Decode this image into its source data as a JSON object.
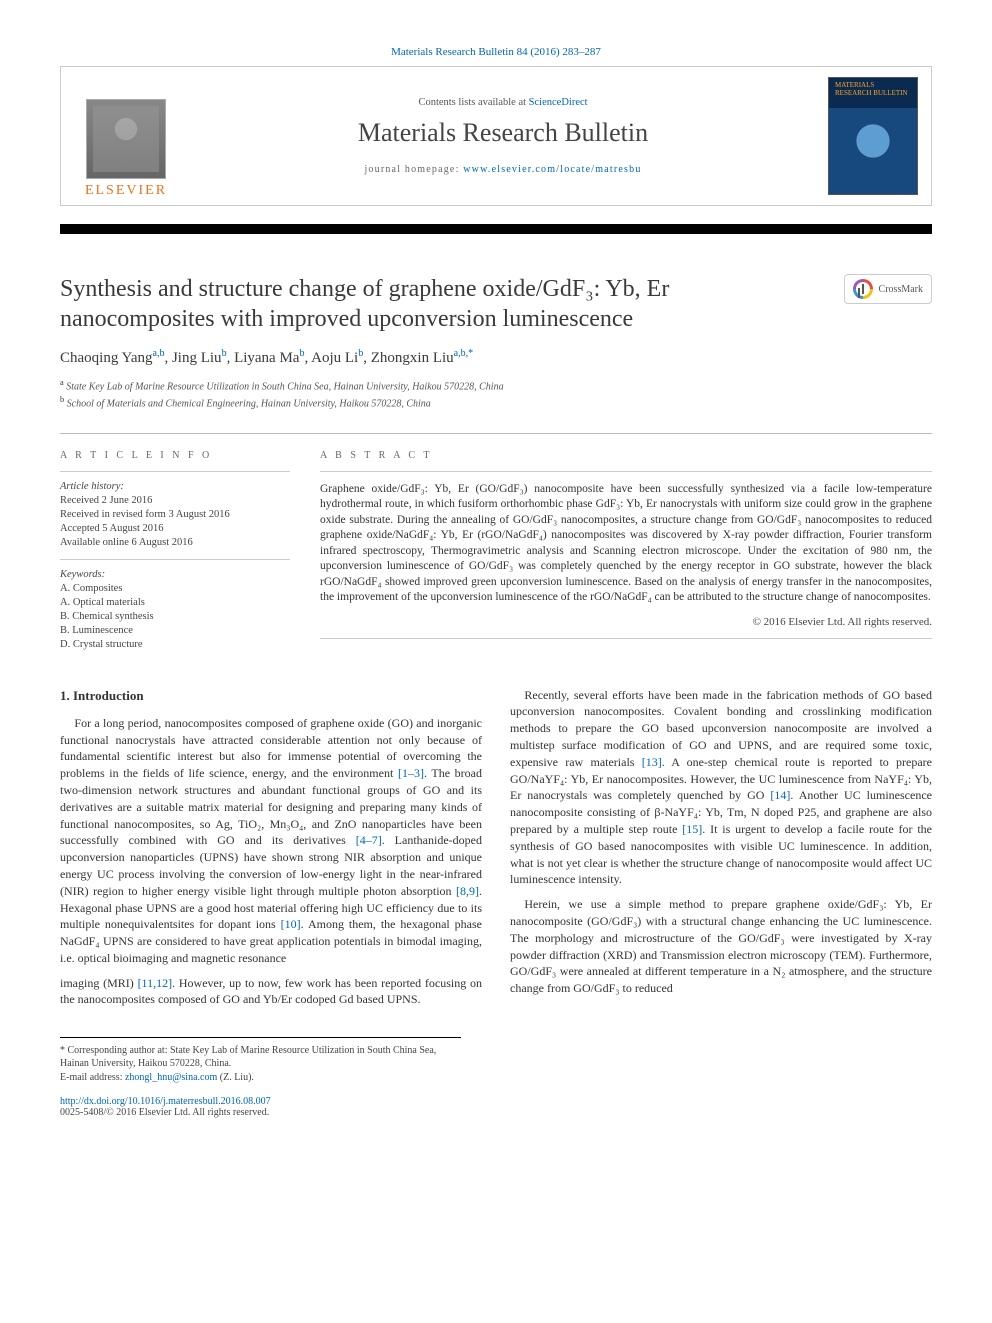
{
  "topbar": {
    "citation": "Materials Research Bulletin 84 (2016) 283–287"
  },
  "header": {
    "contents_prefix": "Contents lists available at ",
    "contents_link": "ScienceDirect",
    "journal": "Materials Research Bulletin",
    "homepage_prefix": "journal homepage: ",
    "homepage_url": "www.elsevier.com/locate/matresbu",
    "publisher": "ELSEVIER",
    "cover_label": "MATERIALS RESEARCH BULLETIN"
  },
  "crossmark": {
    "label": "CrossMark"
  },
  "article": {
    "title": "Synthesis and structure change of graphene oxide/GdF₃: Yb, Er nanocomposites with improved upconversion luminescence",
    "authors_html": "Chaoqing Yang",
    "authors": [
      {
        "name": "Chaoqing Yang",
        "aff": "a,b"
      },
      {
        "name": "Jing Liu",
        "aff": "b"
      },
      {
        "name": "Liyana Ma",
        "aff": "b"
      },
      {
        "name": "Aoju Li",
        "aff": "b"
      },
      {
        "name": "Zhongxin Liu",
        "aff": "a,b,*"
      }
    ],
    "affiliations": {
      "a": "State Key Lab of Marine Resource Utilization in South China Sea, Hainan University, Haikou 570228, China",
      "b": "School of Materials and Chemical Engineering, Hainan University, Haikou 570228, China"
    }
  },
  "info": {
    "heading": "A R T I C L E  I N F O",
    "history_label": "Article history:",
    "history": [
      "Received 2 June 2016",
      "Received in revised form 3 August 2016",
      "Accepted 5 August 2016",
      "Available online 6 August 2016"
    ],
    "keywords_label": "Keywords:",
    "keywords": [
      "A. Composites",
      "A. Optical materials",
      "B. Chemical synthesis",
      "B. Luminescence",
      "D. Crystal structure"
    ]
  },
  "abstract": {
    "heading": "A B S T R A C T",
    "text": "Graphene oxide/GdF₃: Yb, Er (GO/GdF₃) nanocomposite have been successfully synthesized via a facile low-temperature hydrothermal route, in which fusiform orthorhombic phase GdF₃: Yb, Er nanocrystals with uniform size could grow in the graphene oxide substrate. During the annealing of GO/GdF₃ nanocomposites, a structure change from GO/GdF₃ nanocomposites to reduced graphene oxide/NaGdF₄: Yb, Er (rGO/NaGdF₄) nanocomposites was discovered by X-ray powder diffraction, Fourier transform infrared spectroscopy, Thermogravimetric analysis and Scanning electron microscope. Under the excitation of 980 nm, the upconversion luminescence of GO/GdF₃ was completely quenched by the energy receptor in GO substrate, however the black rGO/NaGdF₄ showed improved green upconversion luminescence. Based on the analysis of energy transfer in the nanocomposites, the improvement of the upconversion luminescence of the rGO/NaGdF₄ can be attributed to the structure change of nanocomposites.",
    "copyright": "© 2016 Elsevier Ltd. All rights reserved."
  },
  "body": {
    "section1_heading": "1. Introduction",
    "p1": "For a long period, nanocomposites composed of graphene oxide (GO) and inorganic functional nanocrystals have attracted considerable attention not only because of fundamental scientific interest but also for immense potential of overcoming the problems in the fields of life science, energy, and the environment [1–3]. The broad two-dimension network structures and abundant functional groups of GO and its derivatives are a suitable matrix material for designing and preparing many kinds of functional nanocomposites, so Ag, TiO₂, Mn₃O₄, and ZnO nanoparticles have been successfully combined with GO and its derivatives [4–7]. Lanthanide-doped upconversion nanoparticles (UPNS) have shown strong NIR absorption and unique energy UC process involving the conversion of low-energy light in the near-infrared (NIR) region to higher energy visible light through multiple photon absorption [8,9]. Hexagonal phase UPNS are a good host material offering high UC efficiency due to its multiple nonequivalentsites for dopant ions [10]. Among them, the hexagonal phase NaGdF₄ UPNS are considered to have great application potentials in bimodal imaging, i.e. optical bioimaging and magnetic resonance",
    "p2": "imaging (MRI) [11,12]. However, up to now, few work has been reported focusing on the nanocomposites composed of GO and Yb/Er codoped Gd based UPNS.",
    "p3": "Recently, several efforts have been made in the fabrication methods of GO based upconversion nanocomposites. Covalent bonding and crosslinking modification methods to prepare the GO based upconversion nanocomposite are involved a multistep surface modification of GO and UPNS, and are required some toxic, expensive raw materials [13]. A one-step chemical route is reported to prepare GO/NaYF₄: Yb, Er nanocomposites. However, the UC luminescence from NaYF₄: Yb, Er nanocrystals was completely quenched by GO [14]. Another UC luminescence nanocomposite consisting of β-NaYF₄: Yb, Tm, N doped P25, and graphene are also prepared by a multiple step route [15]. It is urgent to develop a facile route for the synthesis of GO based nanocomposites with visible UC luminescence. In addition, what is not yet clear is whether the structure change of nanocomposite would affect UC luminescence intensity.",
    "p4": "Herein, we use a simple method to prepare graphene oxide/GdF₃: Yb, Er nanocomposite (GO/GdF₃) with a structural change enhancing the UC luminescence. The morphology and microstructure of the GO/GdF₃ were investigated by X-ray powder diffraction (XRD) and Transmission electron microscopy (TEM). Furthermore, GO/GdF₃ were annealed at different temperature in a N₂ atmosphere, and the structure change from GO/GdF₃ to reduced"
  },
  "footnote": {
    "corr": "* Corresponding author at: State Key Lab of Marine Resource Utilization in South China Sea, Hainan University, Haikou 570228, China.",
    "email_label": "E-mail address: ",
    "email": "zhongl_hnu@sina.com",
    "email_author": " (Z. Liu)."
  },
  "doi": {
    "url": "http://dx.doi.org/10.1016/j.materresbull.2016.08.007",
    "issn_line": "0025-5408/© 2016 Elsevier Ltd. All rights reserved."
  },
  "colors": {
    "link": "#0066b3",
    "elsevier_orange": "#e9711c"
  }
}
